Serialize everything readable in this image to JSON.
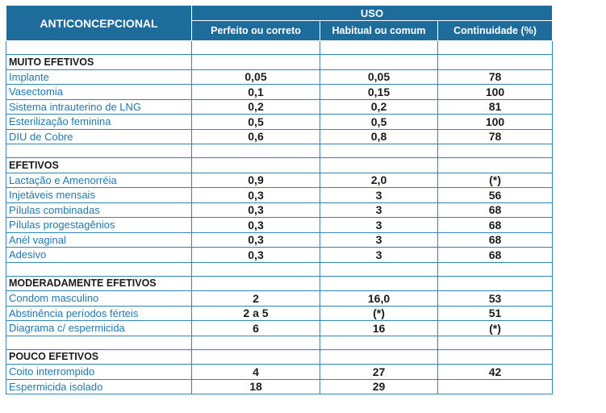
{
  "table": {
    "header": {
      "first_col": "ANTICONCEPCIONAL",
      "group": "USO",
      "sub": [
        "Perfeito ou correto",
        "Habitual ou comum",
        "Continuidade (%)"
      ]
    },
    "sections": [
      {
        "title": "MUITO EFETIVOS",
        "rows": [
          {
            "name": "Implante",
            "perfeito": "0,05",
            "habitual": "0,05",
            "continuidade": "78"
          },
          {
            "name": "Vasectomia",
            "perfeito": "0,1",
            "habitual": "0,15",
            "continuidade": "100"
          },
          {
            "name": "Sistema intrauterino de LNG",
            "perfeito": "0,2",
            "habitual": "0,2",
            "continuidade": "81"
          },
          {
            "name": "Esterilização feminina",
            "perfeito": "0,5",
            "habitual": "0,5",
            "continuidade": "100"
          },
          {
            "name": "DIU de Cobre",
            "perfeito": "0,6",
            "habitual": "0,8",
            "continuidade": "78"
          }
        ]
      },
      {
        "title": "EFETIVOS",
        "rows": [
          {
            "name": "Lactação e Amenorréia",
            "perfeito": "0,9",
            "habitual": "2,0",
            "continuidade": "(*)"
          },
          {
            "name": "Injetáveis mensais",
            "perfeito": "0,3",
            "habitual": "3",
            "continuidade": "56"
          },
          {
            "name": "Pílulas combinadas",
            "perfeito": "0,3",
            "habitual": "3",
            "continuidade": "68"
          },
          {
            "name": "Pílulas progestagênios",
            "perfeito": "0,3",
            "habitual": "3",
            "continuidade": "68"
          },
          {
            "name": "Anél vaginal",
            "perfeito": "0,3",
            "habitual": "3",
            "continuidade": "68"
          },
          {
            "name": "Adesivo",
            "perfeito": "0,3",
            "habitual": "3",
            "continuidade": "68"
          }
        ]
      },
      {
        "title": "MODERADAMENTE EFETIVOS",
        "rows": [
          {
            "name": "Condom masculino",
            "perfeito": "2",
            "habitual": "16,0",
            "continuidade": "53"
          },
          {
            "name": "Abstinência períodos férteis",
            "perfeito": "2 a 5",
            "habitual": "(*)",
            "continuidade": "51"
          },
          {
            "name": "Diagrama c/ espermicida",
            "perfeito": "6",
            "habitual": "16",
            "continuidade": "(*)"
          }
        ]
      },
      {
        "title": "POUCO EFETIVOS",
        "rows": [
          {
            "name": "Coito interrompido",
            "perfeito": "4",
            "habitual": "27",
            "continuidade": "42"
          },
          {
            "name": "Espermicida isolado",
            "perfeito": "18",
            "habitual": "29",
            "continuidade": ""
          }
        ]
      }
    ]
  }
}
